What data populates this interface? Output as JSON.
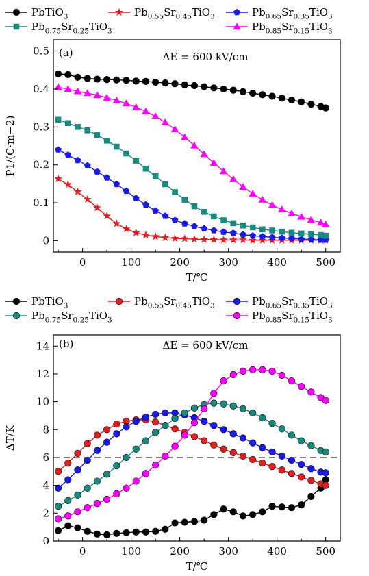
{
  "chart_data": [
    {
      "type": "line",
      "panel_label": "(a)",
      "annotation": "ΔE = 600 kV/cm",
      "xlabel": "T/℃",
      "ylabel": "P1/(C·m−2)",
      "xlim": [
        -60,
        530
      ],
      "ylim": [
        -0.03,
        0.53
      ],
      "xticks": [
        0,
        100,
        200,
        300,
        400,
        500
      ],
      "yticks": [
        0,
        0.1,
        0.2,
        0.3,
        0.4,
        0.5
      ],
      "ytick_labels": [
        "0",
        "0.1",
        "0.2",
        "0.3",
        "0.4",
        "0.5"
      ],
      "grid": false,
      "legend_position": "top, above plot",
      "x": [
        -50,
        -30,
        -10,
        10,
        30,
        50,
        70,
        90,
        110,
        130,
        150,
        170,
        190,
        210,
        230,
        250,
        270,
        290,
        310,
        330,
        350,
        370,
        390,
        410,
        430,
        450,
        470,
        490,
        500
      ],
      "series": [
        {
          "name": "PbTiO3",
          "color": "#000000",
          "marker": "circle",
          "values": [
            0.44,
            0.438,
            0.431,
            0.428,
            0.426,
            0.425,
            0.424,
            0.423,
            0.421,
            0.42,
            0.418,
            0.416,
            0.414,
            0.411,
            0.409,
            0.406,
            0.403,
            0.4,
            0.397,
            0.393,
            0.389,
            0.385,
            0.381,
            0.376,
            0.371,
            0.366,
            0.36,
            0.354,
            0.35
          ]
        },
        {
          "name": "Pb0.55Sr0.45TiO3",
          "color": "#e02020",
          "marker": "star",
          "values": [
            0.163,
            0.148,
            0.129,
            0.109,
            0.087,
            0.065,
            0.045,
            0.031,
            0.021,
            0.015,
            0.011,
            0.008,
            0.006,
            0.005,
            0.004,
            0.003,
            0.003,
            0.002,
            0.002,
            0.002,
            0.001,
            0.001,
            0.001,
            0.001,
            0.001,
            0.001,
            0.001,
            0.001,
            0.001
          ]
        },
        {
          "name": "Pb0.65Sr0.35TiO3",
          "color": "#1a1ae6",
          "marker": "pentagon",
          "values": [
            0.24,
            0.226,
            0.212,
            0.198,
            0.182,
            0.166,
            0.149,
            0.131,
            0.112,
            0.095,
            0.079,
            0.065,
            0.054,
            0.045,
            0.038,
            0.032,
            0.027,
            0.023,
            0.02,
            0.016,
            0.013,
            0.011,
            0.009,
            0.007,
            0.006,
            0.004,
            0.003,
            0.002,
            0.002
          ]
        },
        {
          "name": "Pb0.75Sr0.25TiO3",
          "color": "#1a8a80",
          "marker": "square",
          "values": [
            0.319,
            0.31,
            0.3,
            0.291,
            0.279,
            0.264,
            0.248,
            0.23,
            0.211,
            0.19,
            0.17,
            0.149,
            0.128,
            0.108,
            0.091,
            0.076,
            0.064,
            0.054,
            0.046,
            0.04,
            0.035,
            0.03,
            0.027,
            0.024,
            0.021,
            0.019,
            0.017,
            0.015,
            0.013
          ]
        },
        {
          "name": "Pb0.85Sr0.15TiO3",
          "color": "#ff00ff",
          "marker": "triangle",
          "values": [
            0.405,
            0.4,
            0.394,
            0.389,
            0.384,
            0.377,
            0.37,
            0.362,
            0.352,
            0.341,
            0.328,
            0.312,
            0.294,
            0.273,
            0.251,
            0.228,
            0.205,
            0.183,
            0.162,
            0.142,
            0.124,
            0.108,
            0.094,
            0.082,
            0.072,
            0.063,
            0.055,
            0.048,
            0.043
          ]
        }
      ]
    },
    {
      "type": "line",
      "panel_label": "(b)",
      "annotation": "ΔE = 600 kV/cm",
      "xlabel": "T/℃",
      "ylabel": "ΔT/K",
      "xlim": [
        -60,
        530
      ],
      "ylim": [
        0,
        14.8
      ],
      "xticks": [
        0,
        100,
        200,
        300,
        400,
        500
      ],
      "yticks": [
        0,
        2,
        4,
        6,
        8,
        10,
        12,
        14
      ],
      "ytick_labels": [
        "0",
        "2",
        "4",
        "6",
        "8",
        "10",
        "12",
        "14"
      ],
      "reference_line": 6,
      "grid": false,
      "legend_position": "top, above plot",
      "x": [
        -50,
        -30,
        -10,
        10,
        30,
        50,
        70,
        90,
        110,
        130,
        150,
        170,
        190,
        210,
        230,
        250,
        270,
        290,
        310,
        330,
        350,
        370,
        390,
        410,
        430,
        450,
        470,
        490,
        500
      ],
      "series": [
        {
          "name": "PbTiO3",
          "color": "#000000",
          "marker": "circle",
          "values": [
            0.75,
            1.1,
            0.95,
            0.7,
            0.5,
            0.45,
            0.55,
            0.6,
            0.65,
            0.65,
            0.7,
            0.85,
            1.3,
            1.35,
            1.4,
            1.5,
            1.9,
            2.3,
            2.1,
            1.8,
            1.9,
            2.1,
            2.5,
            2.45,
            2.4,
            2.6,
            3.2,
            3.8,
            4.4
          ]
        },
        {
          "name": "Pb0.55Sr0.45TiO3",
          "color": "#e02020",
          "marker": "circle",
          "values": [
            5.0,
            5.6,
            6.3,
            7.0,
            7.6,
            8.0,
            8.4,
            8.6,
            8.7,
            8.7,
            8.55,
            8.3,
            8.05,
            7.8,
            7.5,
            7.2,
            6.9,
            6.6,
            6.35,
            6.1,
            5.85,
            5.6,
            5.35,
            5.1,
            4.85,
            4.6,
            4.35,
            4.1,
            4.0
          ]
        },
        {
          "name": "Pb0.65Sr0.35TiO3",
          "color": "#1a1ae6",
          "marker": "circle",
          "values": [
            3.8,
            4.4,
            5.1,
            5.8,
            6.5,
            7.1,
            7.7,
            8.2,
            8.6,
            8.9,
            9.1,
            9.2,
            9.2,
            9.05,
            8.85,
            8.6,
            8.3,
            8.0,
            7.7,
            7.4,
            7.05,
            6.7,
            6.4,
            6.1,
            5.8,
            5.5,
            5.2,
            4.95,
            4.9
          ]
        },
        {
          "name": "Pb0.75Sr0.25TiO3",
          "color": "#1a8a80",
          "marker": "circle",
          "values": [
            2.5,
            2.9,
            3.3,
            3.8,
            4.3,
            4.8,
            5.4,
            6.0,
            6.6,
            7.2,
            7.8,
            8.3,
            8.8,
            9.2,
            9.55,
            9.8,
            9.9,
            9.85,
            9.7,
            9.5,
            9.2,
            8.85,
            8.45,
            8.05,
            7.6,
            7.2,
            6.85,
            6.5,
            6.4
          ]
        },
        {
          "name": "Pb0.85Sr0.15TiO3",
          "color": "#ff00ff",
          "marker": "circle",
          "values": [
            1.6,
            1.8,
            2.1,
            2.4,
            2.7,
            3.0,
            3.4,
            3.8,
            4.3,
            4.85,
            5.45,
            6.1,
            6.8,
            7.6,
            8.5,
            9.5,
            10.6,
            11.5,
            11.95,
            12.2,
            12.3,
            12.3,
            12.2,
            11.9,
            11.5,
            11.1,
            10.7,
            10.3,
            10.1
          ]
        }
      ]
    }
  ]
}
